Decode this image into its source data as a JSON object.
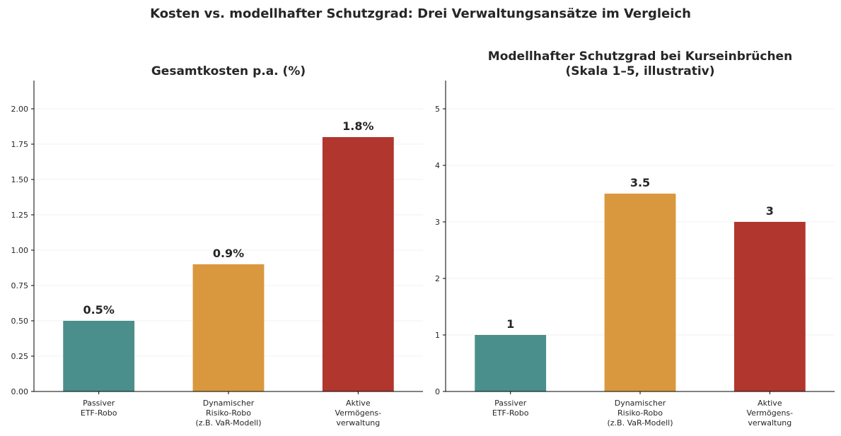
{
  "figure": {
    "suptitle": "Kosten vs. modellhafter Schutzgrad: Drei Verwaltungsansätze im Vergleich"
  },
  "colors": {
    "passive": "#4a8f8b",
    "dynamic": "#d9983e",
    "active": "#b1362e",
    "text": "#262626",
    "grid": "#ebebeb",
    "axis": "#000000"
  },
  "chart_data": [
    {
      "type": "bar",
      "title": "Gesamtkosten p.a. (%)",
      "xlabel": "",
      "ylabel": "",
      "categories": [
        [
          "Passiver",
          "ETF-Robo"
        ],
        [
          "Dynamischer",
          "Risiko-Robo",
          "(z.B. VaR-Modell)"
        ],
        [
          "Aktive",
          "Vermögens-",
          "verwaltung"
        ]
      ],
      "values": [
        0.5,
        0.9,
        1.8
      ],
      "data_labels": [
        "0.5%",
        "0.9%",
        "1.8%"
      ],
      "bar_colors": [
        "#4a8f8b",
        "#d9983e",
        "#b1362e"
      ],
      "ylim": [
        0,
        2.2
      ],
      "yticks": [
        0,
        0.25,
        0.5,
        0.75,
        1.0,
        1.25,
        1.5,
        1.75,
        2.0
      ],
      "ytick_labels": [
        "0.00",
        "0.25",
        "0.50",
        "0.75",
        "1.00",
        "1.25",
        "1.50",
        "1.75",
        "2.00"
      ],
      "grid": "y-axis",
      "legend": "none"
    },
    {
      "type": "bar",
      "title": "Modellhafter Schutzgrad bei Kurseinbrüchen\n(Skala 1–5, illustrativ)",
      "xlabel": "",
      "ylabel": "",
      "categories": [
        [
          "Passiver",
          "ETF-Robo"
        ],
        [
          "Dynamischer",
          "Risiko-Robo",
          "(z.B. VaR-Modell)"
        ],
        [
          "Aktive",
          "Vermögens-",
          "verwaltung"
        ]
      ],
      "values": [
        1,
        3.5,
        3
      ],
      "data_labels": [
        "1",
        "3.5",
        "3"
      ],
      "bar_colors": [
        "#4a8f8b",
        "#d9983e",
        "#b1362e"
      ],
      "ylim": [
        0,
        5.5
      ],
      "yticks": [
        0,
        1,
        2,
        3,
        4,
        5
      ],
      "ytick_labels": [
        "0",
        "1",
        "2",
        "3",
        "4",
        "5"
      ],
      "grid": "y-axis",
      "legend": "none"
    }
  ]
}
